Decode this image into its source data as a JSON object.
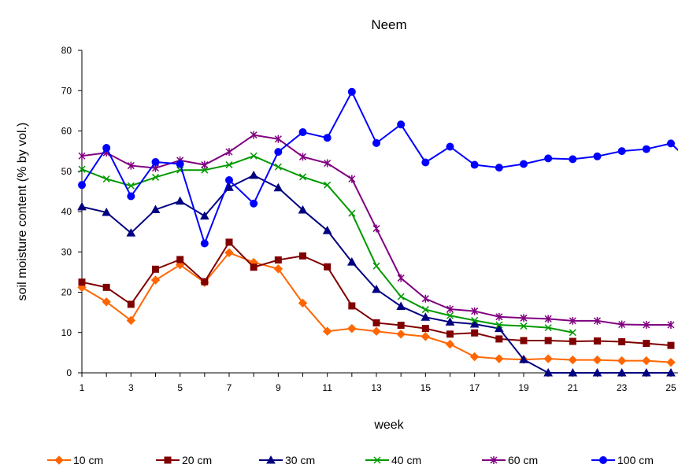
{
  "chart_data": {
    "type": "line",
    "title": "Neem",
    "xlabel": "week",
    "ylabel": "soil moisture content (% by vol.)",
    "xlim": [
      1,
      25
    ],
    "ylim": [
      0,
      80
    ],
    "x_ticks": [
      1,
      3,
      5,
      7,
      9,
      11,
      13,
      15,
      17,
      19,
      21,
      23,
      25
    ],
    "y_ticks": [
      0,
      10,
      20,
      30,
      40,
      50,
      60,
      70,
      80
    ],
    "grid": false,
    "legend_position": "bottom",
    "series": [
      {
        "name": "10 cm",
        "color": "#FF6600",
        "marker": "diamond",
        "x": [
          1,
          2,
          3,
          4,
          5,
          6,
          7,
          8,
          9,
          10,
          11,
          12,
          13,
          14,
          15,
          16,
          17,
          18,
          19,
          20,
          21,
          22,
          23,
          24,
          25
        ],
        "values": [
          21.2,
          17.6,
          13.0,
          23.0,
          26.8,
          22.4,
          29.8,
          27.4,
          25.8,
          17.3,
          10.3,
          11.0,
          10.3,
          9.6,
          9.0,
          7.1,
          4.0,
          3.5,
          3.3,
          3.5,
          3.2,
          3.2,
          3.0,
          3.0,
          2.6
        ]
      },
      {
        "name": "20 cm",
        "color": "#800000",
        "marker": "square",
        "x": [
          1,
          2,
          3,
          4,
          5,
          6,
          7,
          8,
          9,
          10,
          11,
          12,
          13,
          14,
          15,
          16,
          17,
          18,
          19,
          20,
          21,
          22,
          23,
          24,
          25
        ],
        "values": [
          22.5,
          21.2,
          17.0,
          25.7,
          28.1,
          22.6,
          32.4,
          26.2,
          28.0,
          29.0,
          26.3,
          16.6,
          12.4,
          11.8,
          11.0,
          9.6,
          9.9,
          8.4,
          8.0,
          8.0,
          7.8,
          7.9,
          7.7,
          7.3,
          6.8
        ]
      },
      {
        "name": "30 cm",
        "color": "#000080",
        "marker": "triangle",
        "x": [
          1,
          2,
          3,
          4,
          5,
          6,
          7,
          8,
          9,
          10,
          11,
          12,
          13,
          14,
          15,
          16,
          17,
          18,
          19,
          20,
          21,
          22,
          23,
          24,
          25
        ],
        "values": [
          41.2,
          39.8,
          34.7,
          40.5,
          42.6,
          38.9,
          46.0,
          49.0,
          45.9,
          40.4,
          35.3,
          27.5,
          20.7,
          16.5,
          13.8,
          12.6,
          12.1,
          11.0,
          3.3,
          0,
          0,
          0,
          0,
          0,
          0
        ]
      },
      {
        "name": "40 cm",
        "color": "#009900",
        "marker": "x",
        "x": [
          1,
          2,
          3,
          4,
          5,
          6,
          7,
          8,
          9,
          10,
          11,
          12,
          13,
          14,
          15,
          16,
          17,
          18,
          19,
          20,
          21
        ],
        "values": [
          50.5,
          48.1,
          46.4,
          48.5,
          50.3,
          50.3,
          51.6,
          53.8,
          51.1,
          48.6,
          46.6,
          39.6,
          26.5,
          18.9,
          15.7,
          14.2,
          13.0,
          11.9,
          11.6,
          11.2,
          10.0
        ]
      },
      {
        "name": "60 cm",
        "color": "#800080",
        "marker": "star",
        "x": [
          1,
          2,
          3,
          4,
          5,
          6,
          7,
          8,
          9,
          10,
          11,
          12,
          13,
          14,
          15,
          16,
          17,
          18,
          19,
          20,
          21,
          22,
          23,
          24,
          25
        ],
        "values": [
          53.8,
          54.6,
          51.4,
          50.8,
          52.7,
          51.6,
          54.8,
          59.0,
          58.0,
          53.6,
          52.0,
          48.1,
          35.8,
          23.5,
          18.4,
          15.8,
          15.3,
          13.9,
          13.6,
          13.4,
          12.9,
          12.9,
          12.0,
          11.9,
          11.9
        ]
      },
      {
        "name": "100 cm",
        "color": "#0000FF",
        "marker": "circle",
        "x": [
          1,
          2,
          3,
          4,
          5,
          6,
          7,
          8,
          9,
          10,
          11,
          12,
          13,
          14,
          15,
          16,
          17,
          18,
          19,
          20,
          21,
          22,
          23,
          24,
          25,
          25.3
        ],
        "values": [
          46.6,
          55.8,
          43.8,
          52.3,
          51.8,
          32.1,
          47.8,
          42.0,
          54.8,
          59.7,
          58.3,
          69.7,
          57.0,
          61.6,
          52.2,
          56.1,
          51.6,
          50.9,
          51.8,
          53.2,
          53.0,
          53.7,
          55.0,
          55.5,
          56.9,
          55.2
        ]
      }
    ]
  }
}
